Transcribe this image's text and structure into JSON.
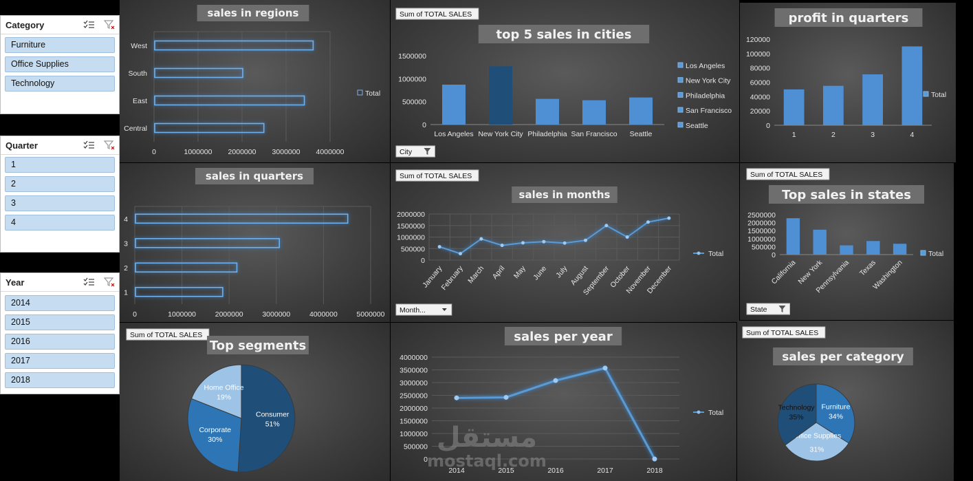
{
  "slicers": {
    "category": {
      "title": "Category",
      "items": [
        "Furniture",
        "Office Supplies",
        "Technology"
      ]
    },
    "quarter": {
      "title": "Quarter",
      "items": [
        "1",
        "2",
        "3",
        "4"
      ]
    },
    "year": {
      "title": "Year",
      "items": [
        "2014",
        "2015",
        "2016",
        "2017",
        "2018"
      ]
    }
  },
  "field_buttons": {
    "sum_total_sales": "Sum of TOTAL SALES",
    "city_filter": "City",
    "month_filter": "Month...",
    "state_filter": "State"
  },
  "watermark": {
    "arabic": "مستقل",
    "latin": "mostaql.com"
  },
  "chart_data": [
    {
      "id": "regions",
      "type": "bar",
      "orientation": "horizontal",
      "title": "sales in regions",
      "categories": [
        "West",
        "South",
        "East",
        "Central"
      ],
      "values": [
        3600000,
        2000000,
        3400000,
        2480000
      ],
      "xlim": [
        0,
        4000000
      ],
      "xticks": [
        "0",
        "1000000",
        "2000000",
        "3000000",
        "4000000"
      ],
      "legend": [
        "Total"
      ],
      "legend_position": "right",
      "grid": true
    },
    {
      "id": "cities",
      "type": "bar",
      "title": "top 5 sales in cities",
      "categories": [
        "Los Angeles",
        "New York City",
        "Philadelphia",
        "San Francisco",
        "Seattle"
      ],
      "values": [
        870000,
        1270000,
        560000,
        530000,
        590000
      ],
      "ylim": [
        0,
        1500000
      ],
      "yticks": [
        "0",
        "500000",
        "1000000",
        "1500000"
      ],
      "legend": [
        "Los Angeles",
        "New York City",
        "Philadelphia",
        "San Francisco",
        "Seattle"
      ],
      "legend_position": "right",
      "colors": [
        "#4f8fd4",
        "#1f4e79",
        "#4f8fd4",
        "#4f8fd4",
        "#4f8fd4"
      ]
    },
    {
      "id": "profit_quarters",
      "type": "bar",
      "title": "profit in quarters",
      "categories": [
        "1",
        "2",
        "3",
        "4"
      ],
      "values": [
        50000,
        55000,
        71000,
        110000
      ],
      "ylim": [
        0,
        120000
      ],
      "yticks": [
        "0",
        "20000",
        "40000",
        "60000",
        "80000",
        "100000",
        "120000"
      ],
      "legend": [
        "Total"
      ],
      "legend_position": "right"
    },
    {
      "id": "quarters",
      "type": "bar",
      "orientation": "horizontal",
      "title": "sales in quarters",
      "categories": [
        "4",
        "3",
        "2",
        "1"
      ],
      "values": [
        4500000,
        3050000,
        2150000,
        1850000
      ],
      "xlim": [
        0,
        5000000
      ],
      "xticks": [
        "0",
        "1000000",
        "2000000",
        "3000000",
        "4000000",
        "5000000"
      ],
      "grid": true
    },
    {
      "id": "months",
      "type": "line",
      "title": "sales in months",
      "categories": [
        "January",
        "February",
        "March",
        "April",
        "May",
        "June",
        "July",
        "August",
        "September",
        "October",
        "November",
        "December"
      ],
      "values": [
        580000,
        280000,
        920000,
        640000,
        750000,
        800000,
        740000,
        860000,
        1500000,
        1000000,
        1650000,
        1820000
      ],
      "ylim": [
        0,
        2000000
      ],
      "yticks": [
        "0",
        "500000",
        "1000000",
        "1500000",
        "2000000"
      ],
      "legend": [
        "Total"
      ],
      "legend_position": "right",
      "grid": true
    },
    {
      "id": "states",
      "type": "bar",
      "title": "Top sales in states",
      "categories": [
        "California",
        "New York",
        "Pennsylvania",
        "Texas",
        "Washington"
      ],
      "values": [
        2280000,
        1560000,
        580000,
        850000,
        680000
      ],
      "ylim": [
        0,
        2500000
      ],
      "yticks": [
        "0",
        "500000",
        "1000000",
        "1500000",
        "2000000",
        "2500000"
      ],
      "legend": [
        "Total"
      ],
      "legend_position": "right"
    },
    {
      "id": "segments",
      "type": "pie",
      "title": "Top segments",
      "labels": [
        "Consumer",
        "Corporate",
        "Home Office"
      ],
      "values": [
        51,
        30,
        19
      ],
      "value_labels": [
        "51%",
        "30%",
        "19%"
      ],
      "colors": [
        "#1f4e79",
        "#2e75b6",
        "#9dc3e6"
      ]
    },
    {
      "id": "years",
      "type": "line",
      "title": "sales per year",
      "categories": [
        "2014",
        "2015",
        "2016",
        "2017",
        "2018"
      ],
      "values": [
        2400000,
        2420000,
        3080000,
        3570000,
        0
      ],
      "ylim": [
        0,
        4000000
      ],
      "yticks": [
        "0",
        "500000",
        "1000000",
        "1500000",
        "2000000",
        "2500000",
        "3000000",
        "3500000",
        "4000000"
      ],
      "legend": [
        "Total"
      ],
      "legend_position": "right",
      "grid": true
    },
    {
      "id": "category",
      "type": "pie",
      "title": "sales per category",
      "labels": [
        "Furniture",
        "Office Supplies",
        "Technology"
      ],
      "values": [
        34,
        31,
        35
      ],
      "value_labels": [
        "34%",
        "31%",
        "35%"
      ],
      "colors": [
        "#2e75b6",
        "#9dc3e6",
        "#1f4e79"
      ]
    }
  ]
}
